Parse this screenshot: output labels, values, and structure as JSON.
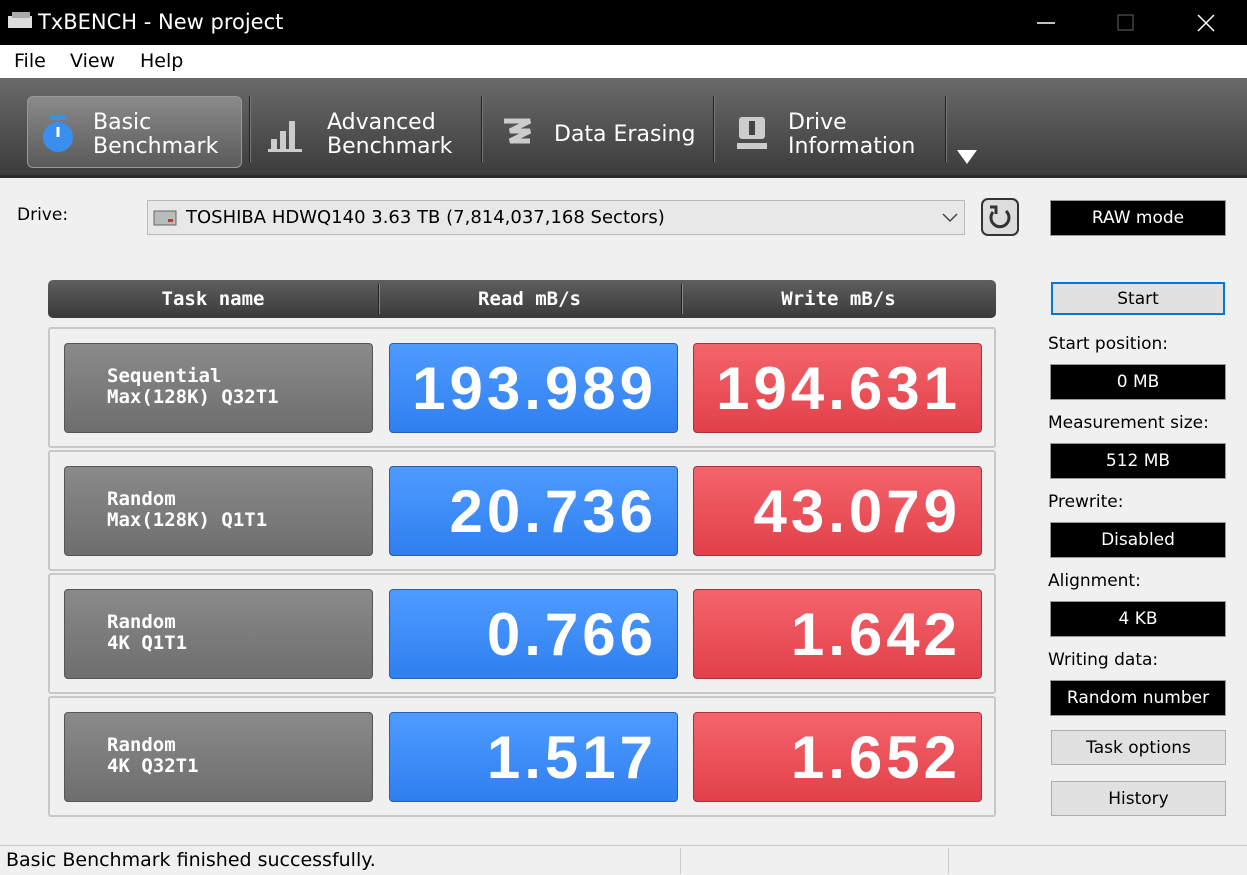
{
  "window": {
    "title": "TxBENCH - New project"
  },
  "menu": [
    "File",
    "View",
    "Help"
  ],
  "tabs": [
    {
      "lines": [
        "Basic",
        "Benchmark"
      ]
    },
    {
      "lines": [
        "Advanced",
        "Benchmark"
      ]
    },
    {
      "lines": [
        "Data Erasing"
      ]
    },
    {
      "lines": [
        "Drive",
        "Information"
      ]
    }
  ],
  "drive": {
    "label": "Drive:",
    "value": "TOSHIBA HDWQ140  3.63 TB (7,814,037,168 Sectors)"
  },
  "mode": "RAW mode",
  "table": {
    "headers": [
      "Task name",
      "Read mB/s",
      "Write mB/s"
    ],
    "rows": [
      {
        "task": [
          "Sequential",
          "Max(128K) Q32T1"
        ],
        "read": "193.989",
        "write": "194.631"
      },
      {
        "task": [
          "Random",
          "Max(128K) Q1T1"
        ],
        "read": "20.736",
        "write": "43.079"
      },
      {
        "task": [
          "Random",
          "4K Q1T1"
        ],
        "read": "0.766",
        "write": "1.642"
      },
      {
        "task": [
          "Random",
          "4K Q32T1"
        ],
        "read": "1.517",
        "write": "1.652"
      }
    ]
  },
  "side": {
    "start": "Start",
    "fields": [
      {
        "label": "Start position:",
        "value": "0 MB"
      },
      {
        "label": "Measurement size:",
        "value": "512 MB"
      },
      {
        "label": "Prewrite:",
        "value": "Disabled"
      },
      {
        "label": "Alignment:",
        "value": "4 KB"
      },
      {
        "label": "Writing data:",
        "value": "Random number"
      }
    ],
    "buttons": [
      "Task options",
      "History"
    ]
  },
  "status": "Basic Benchmark finished successfully."
}
